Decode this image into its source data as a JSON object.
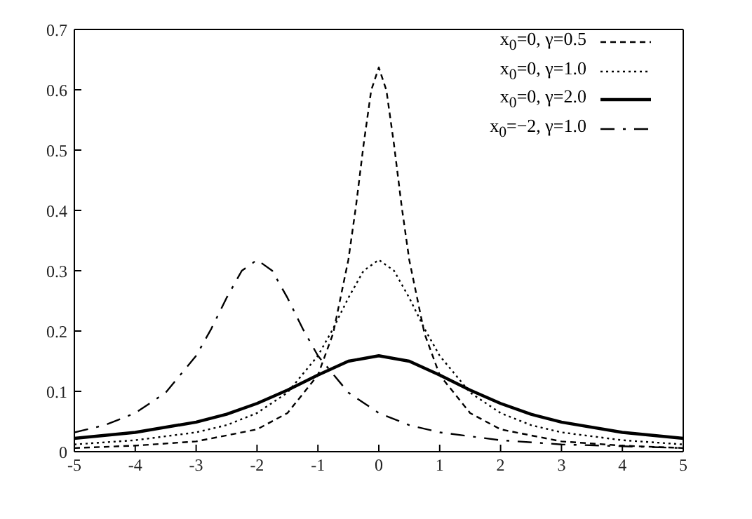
{
  "chart_data": {
    "type": "line",
    "xlim": [
      -5,
      5
    ],
    "xticks": [
      -5,
      -4,
      -3,
      -2,
      -1,
      0,
      1,
      2,
      3,
      4,
      5
    ],
    "ylim": [
      0,
      0.7
    ],
    "yticks": [
      0,
      0.1,
      0.2,
      0.3,
      0.4,
      0.5,
      0.6,
      0.7
    ],
    "grid": false,
    "legend": "top right",
    "marker": "none",
    "series": [
      {
        "name": "x$_{0}$=0, γ=0.5",
        "color": "#000000",
        "line_style": "dashed",
        "x": [
          -5,
          -4,
          -3,
          -2,
          -1.5,
          -1,
          -0.75,
          -0.5,
          -0.375,
          -0.25,
          -0.125,
          0,
          0.125,
          0.25,
          0.375,
          0.5,
          0.75,
          1,
          1.5,
          2,
          3,
          4,
          5
        ],
        "values": [
          0.006,
          0.01,
          0.017,
          0.037,
          0.064,
          0.127,
          0.196,
          0.318,
          0.407,
          0.509,
          0.599,
          0.637,
          0.599,
          0.509,
          0.407,
          0.318,
          0.196,
          0.127,
          0.064,
          0.037,
          0.017,
          0.01,
          0.006
        ]
      },
      {
        "name": "x$_{0}$=0, γ=1.0",
        "color": "#000000",
        "line_style": "dotted",
        "x": [
          -5,
          -4,
          -3,
          -2.5,
          -2,
          -1.5,
          -1,
          -0.75,
          -0.5,
          -0.25,
          0,
          0.25,
          0.5,
          0.75,
          1,
          1.5,
          2,
          2.5,
          3,
          4,
          5
        ],
        "values": [
          0.012,
          0.019,
          0.032,
          0.044,
          0.064,
          0.098,
          0.159,
          0.204,
          0.255,
          0.3,
          0.318,
          0.3,
          0.255,
          0.204,
          0.159,
          0.098,
          0.064,
          0.044,
          0.032,
          0.019,
          0.012
        ]
      },
      {
        "name": "x$_{0}$=0, γ=2.0",
        "color": "#000000",
        "line_style": "solid",
        "x": [
          -5,
          -4,
          -3,
          -2.5,
          -2,
          -1.5,
          -1,
          -0.5,
          0,
          0.5,
          1,
          1.5,
          2,
          2.5,
          3,
          4,
          5
        ],
        "values": [
          0.022,
          0.032,
          0.049,
          0.062,
          0.08,
          0.102,
          0.127,
          0.15,
          0.159,
          0.15,
          0.127,
          0.102,
          0.08,
          0.062,
          0.049,
          0.032,
          0.022
        ]
      },
      {
        "name": "x$_{0}$=−2, γ=1.0",
        "color": "#000000",
        "line_style": "dashed",
        "x": [
          -5,
          -4.5,
          -4,
          -3.5,
          -3,
          -2.75,
          -2.5,
          -2.25,
          -2,
          -1.75,
          -1.5,
          -1.25,
          -1,
          -0.5,
          0,
          0.5,
          1,
          2,
          3,
          4,
          5
        ],
        "values": [
          0.032,
          0.044,
          0.064,
          0.098,
          0.159,
          0.204,
          0.255,
          0.3,
          0.318,
          0.3,
          0.255,
          0.204,
          0.159,
          0.098,
          0.064,
          0.044,
          0.032,
          0.019,
          0.012,
          0.009,
          0.006
        ]
      }
    ]
  }
}
